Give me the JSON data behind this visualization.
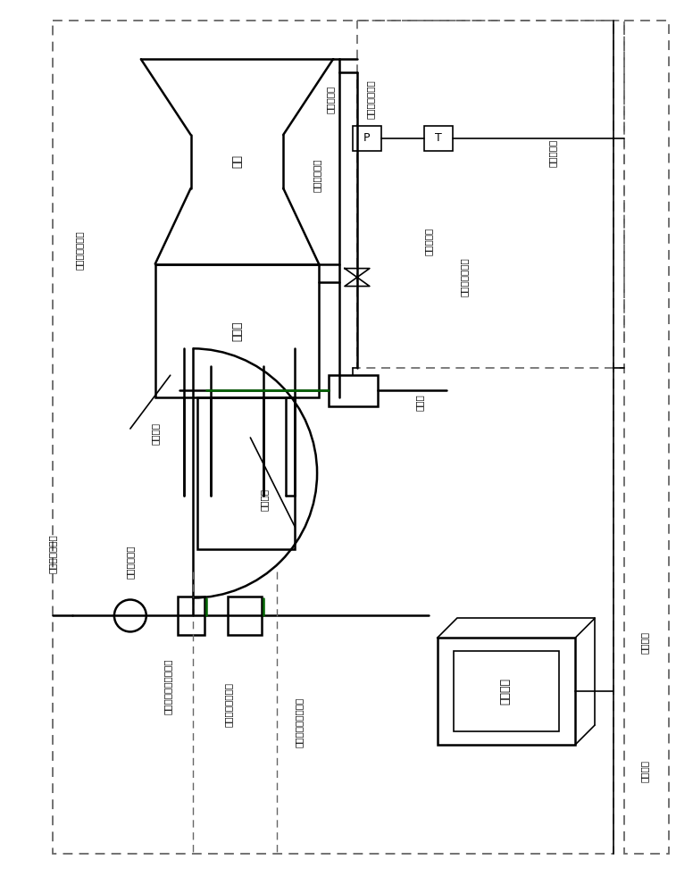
{
  "line_color": "#000000",
  "green_color": "#006400",
  "labels": {
    "ramjet_nozzle": "尾喙",
    "combustor": "燃烧室",
    "liquid_fuel_injector": "液态煤油喷射孔",
    "liquid_fuel_pipe": "液态煤油管路",
    "pressure_sensor": "压力传感器",
    "fuel_supply_manifold": "煤油输送总管路",
    "temp_sensor": "温度传感器",
    "sonic_nozzle_flowmeter": "声速喷管流量计",
    "fuel_flowmeter": "煤油流量计",
    "switch_valve": "切换阀",
    "fuel_main_switch": "煤油总开关阀",
    "h2_引开关阀": "氢气供给系统引开关阀",
    "supercritical_pipe": "超临界态煤油管路",
    "supercritical_injector": "超临界态煤油喷射孔",
    "h2_control": "氢气控制",
    "fuel_control": "煤油控制",
    "control_system": "控制系统",
    "fuel_flow_measure": "煤油流量测量件",
    "signal_input": "信号输入",
    "signal_output": "信号输出"
  }
}
